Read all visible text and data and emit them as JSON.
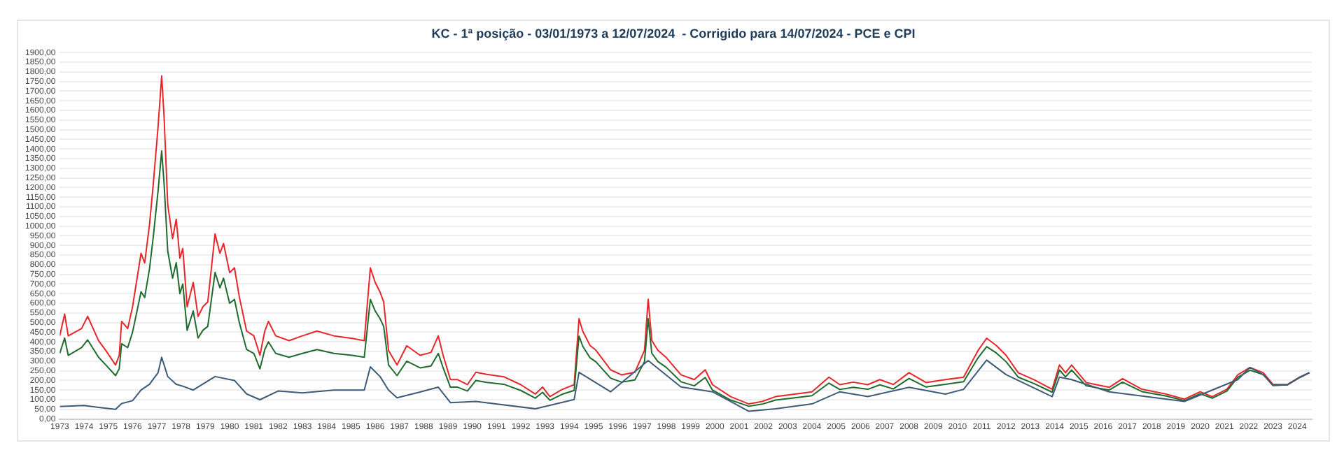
{
  "chart_data": {
    "type": "line",
    "title": "KC - 1ª posição - 03/01/1973 a 12/07/2024  - Corrigido para 14/07/2024 - PCE e CPI",
    "grid": "y",
    "legend": false,
    "marker": "none",
    "line_style": "solid",
    "xlim": [
      1973,
      2024.6
    ],
    "xticks": [
      1973,
      1974,
      1975,
      1976,
      1977,
      1978,
      1979,
      1980,
      1981,
      1982,
      1983,
      1984,
      1985,
      1986,
      1987,
      1988,
      1989,
      1990,
      1991,
      1992,
      1993,
      1994,
      1995,
      1996,
      1997,
      1998,
      1999,
      2000,
      2001,
      2002,
      2003,
      2004,
      2005,
      2006,
      2007,
      2008,
      2009,
      2010,
      2011,
      2012,
      2013,
      2014,
      2015,
      2016,
      2017,
      2018,
      2019,
      2020,
      2021,
      2022,
      2023,
      2024
    ],
    "ylim": [
      0,
      1900
    ],
    "yticks": [
      {
        "value": 0,
        "label": "0,00"
      },
      {
        "value": 50,
        "label": "50,00"
      },
      {
        "value": 100,
        "label": "100,00"
      },
      {
        "value": 150,
        "label": "150,00"
      },
      {
        "value": 200,
        "label": "200,00"
      },
      {
        "value": 250,
        "label": "250,00"
      },
      {
        "value": 300,
        "label": "300,00"
      },
      {
        "value": 350,
        "label": "350,00"
      },
      {
        "value": 400,
        "label": "400,00"
      },
      {
        "value": 450,
        "label": "450,00"
      },
      {
        "value": 500,
        "label": "500,00"
      },
      {
        "value": 550,
        "label": "550,00"
      },
      {
        "value": 600,
        "label": "600,00"
      },
      {
        "value": 650,
        "label": "650,00"
      },
      {
        "value": 700,
        "label": "700,00"
      },
      {
        "value": 750,
        "label": "750,00"
      },
      {
        "value": 800,
        "label": "800,00"
      },
      {
        "value": 850,
        "label": "850,00"
      },
      {
        "value": 900,
        "label": "900,00"
      },
      {
        "value": 950,
        "label": "950,00"
      },
      {
        "value": 1000,
        "label": "1000,00"
      },
      {
        "value": 1050,
        "label": "1050,00"
      },
      {
        "value": 1100,
        "label": "1100,00"
      },
      {
        "value": 1150,
        "label": "1150,00"
      },
      {
        "value": 1200,
        "label": "1200,00"
      },
      {
        "value": 1250,
        "label": "1250,00"
      },
      {
        "value": 1300,
        "label": "1300,00"
      },
      {
        "value": 1350,
        "label": "1350,00"
      },
      {
        "value": 1400,
        "label": "1400,00"
      },
      {
        "value": 1450,
        "label": "1450,00"
      },
      {
        "value": 1500,
        "label": "1500,00"
      },
      {
        "value": 1550,
        "label": "1550,00"
      },
      {
        "value": 1600,
        "label": "1600,00"
      },
      {
        "value": 1650,
        "label": "1650,00"
      },
      {
        "value": 1700,
        "label": "1700,00"
      },
      {
        "value": 1750,
        "label": "1750,00"
      },
      {
        "value": 1800,
        "label": "1800,00"
      },
      {
        "value": 1850,
        "label": "1850,00"
      },
      {
        "value": 1900,
        "label": "1900,00"
      }
    ],
    "series": [
      {
        "color": "#e8262a",
        "x": [
          1973.0,
          1973.2,
          1973.35,
          1973.9,
          1974.15,
          1974.6,
          1974.9,
          1975.3,
          1975.45,
          1975.55,
          1975.8,
          1976.0,
          1976.35,
          1976.5,
          1976.7,
          1976.85,
          1977.05,
          1977.2,
          1977.3,
          1977.45,
          1977.65,
          1977.8,
          1977.95,
          1978.07,
          1978.25,
          1978.5,
          1978.7,
          1978.9,
          1979.1,
          1979.4,
          1979.6,
          1979.75,
          1980.0,
          1980.2,
          1980.4,
          1980.7,
          1981.0,
          1981.25,
          1981.45,
          1981.6,
          1981.9,
          1982.45,
          1983.0,
          1983.6,
          1984.3,
          1985.05,
          1985.55,
          1985.8,
          1986.0,
          1986.2,
          1986.35,
          1986.55,
          1986.9,
          1987.3,
          1987.85,
          1988.3,
          1988.6,
          1988.8,
          1989.1,
          1989.4,
          1989.8,
          1990.15,
          1990.6,
          1991.3,
          1992.0,
          1992.6,
          1992.9,
          1993.2,
          1993.7,
          1994.2,
          1994.4,
          1994.55,
          1994.85,
          1995.1,
          1995.7,
          1996.15,
          1996.7,
          1997.1,
          1997.25,
          1997.4,
          1997.65,
          1998.0,
          1998.6,
          1999.15,
          1999.6,
          1999.9,
          2000.65,
          2001.4,
          2001.95,
          2002.5,
          2003.3,
          2004.0,
          2004.7,
          2005.15,
          2005.7,
          2006.3,
          2006.8,
          2007.35,
          2008.0,
          2008.7,
          2009.5,
          2010.25,
          2010.85,
          2011.2,
          2011.6,
          2012.0,
          2012.5,
          2013.15,
          2013.9,
          2014.2,
          2014.45,
          2014.7,
          2015.3,
          2016.25,
          2016.8,
          2017.6,
          2018.6,
          2019.35,
          2020.0,
          2020.5,
          2021.1,
          2021.55,
          2022.05,
          2022.6,
          2023.0,
          2023.6,
          2024.1,
          2024.5
        ],
        "values": [
          431,
          544,
          431,
          469,
          532,
          406,
          355,
          280,
          330,
          506,
          469,
          582,
          859,
          809,
          1010,
          1212,
          1514,
          1779,
          1565,
          1111,
          935,
          1036,
          834,
          884,
          582,
          708,
          532,
          582,
          607,
          960,
          859,
          910,
          759,
          784,
          633,
          456,
          431,
          330,
          456,
          506,
          431,
          406,
          431,
          456,
          431,
          418,
          406,
          784,
          708,
          658,
          607,
          355,
          280,
          380,
          330,
          345,
          431,
          330,
          204,
          204,
          178,
          242,
          231,
          219,
          178,
          129,
          166,
          116,
          153,
          178,
          520,
          456,
          382,
          356,
          255,
          229,
          242,
          356,
          621,
          407,
          356,
          318,
          229,
          204,
          255,
          178,
          116,
          78,
          91,
          116,
          129,
          141,
          217,
          178,
          191,
          178,
          204,
          179,
          240,
          189,
          204,
          217,
          356,
          419,
          381,
          330,
          240,
          204,
          154,
          280,
          240,
          280,
          189,
          164,
          209,
          154,
          129,
          103,
          141,
          116,
          154,
          229,
          267,
          240,
          179,
          179,
          217,
          240
        ]
      },
      {
        "color": "#1f6b2e",
        "x": [
          1973.0,
          1973.2,
          1973.35,
          1973.9,
          1974.15,
          1974.6,
          1974.9,
          1975.3,
          1975.45,
          1975.55,
          1975.8,
          1976.0,
          1976.35,
          1976.5,
          1976.7,
          1976.85,
          1977.05,
          1977.2,
          1977.3,
          1977.45,
          1977.65,
          1977.8,
          1977.95,
          1978.07,
          1978.25,
          1978.5,
          1978.7,
          1978.9,
          1979.1,
          1979.4,
          1979.6,
          1979.75,
          1980.0,
          1980.2,
          1980.4,
          1980.7,
          1981.0,
          1981.25,
          1981.45,
          1981.6,
          1981.9,
          1982.45,
          1983.0,
          1983.6,
          1984.3,
          1985.05,
          1985.55,
          1985.8,
          1986.0,
          1986.2,
          1986.35,
          1986.55,
          1986.9,
          1987.3,
          1987.85,
          1988.3,
          1988.6,
          1988.8,
          1989.1,
          1989.4,
          1989.8,
          1990.15,
          1990.6,
          1991.3,
          1992.0,
          1992.6,
          1992.9,
          1993.2,
          1993.7,
          1994.2,
          1994.4,
          1994.55,
          1994.85,
          1995.1,
          1995.7,
          1996.15,
          1996.7,
          1997.1,
          1997.25,
          1997.4,
          1997.65,
          1998.0,
          1998.6,
          1999.15,
          1999.6,
          1999.9,
          2000.65,
          2001.4,
          2001.95,
          2002.5,
          2003.3,
          2004.0,
          2004.7,
          2005.15,
          2005.7,
          2006.3,
          2006.8,
          2007.35,
          2008.0,
          2008.7,
          2009.5,
          2010.25,
          2010.85,
          2011.2,
          2011.6,
          2012.0,
          2012.5,
          2013.15,
          2013.9,
          2014.2,
          2014.45,
          2014.7,
          2015.3,
          2016.25,
          2016.8,
          2017.6,
          2018.6,
          2019.35,
          2020.0,
          2020.5,
          2021.1,
          2021.55,
          2022.05,
          2022.6,
          2023.0,
          2023.6,
          2024.1,
          2024.5
        ],
        "values": [
          340,
          420,
          330,
          370,
          410,
          320,
          280,
          225,
          260,
          390,
          370,
          450,
          660,
          630,
          780,
          940,
          1180,
          1390,
          1220,
          870,
          730,
          810,
          650,
          700,
          460,
          560,
          420,
          460,
          480,
          760,
          680,
          730,
          600,
          620,
          500,
          360,
          340,
          260,
          360,
          400,
          340,
          320,
          340,
          360,
          340,
          330,
          320,
          620,
          560,
          520,
          480,
          280,
          225,
          300,
          265,
          275,
          340,
          265,
          165,
          165,
          145,
          200,
          190,
          180,
          148,
          108,
          138,
          97,
          128,
          148,
          430,
          378,
          318,
          296,
          212,
          191,
          202,
          298,
          520,
          341,
          298,
          267,
          193,
          172,
          215,
          150,
          98,
          66,
          77,
          98,
          110,
          121,
          186,
          153,
          164,
          154,
          177,
          156,
          210,
          166,
          180,
          193,
          318,
          375,
          342,
          297,
          217,
          184,
          139,
          254,
          218,
          254,
          172,
          150,
          191,
          142,
          119,
          95,
          131,
          108,
          145,
          216,
          253,
          230,
          174,
          177,
          215,
          240
        ]
      },
      {
        "color": "#3d5a78",
        "x": [
          1973.0,
          1974.0,
          1974.6,
          1975.3,
          1975.55,
          1976.0,
          1976.35,
          1976.7,
          1977.05,
          1977.2,
          1977.45,
          1977.8,
          1978.07,
          1978.5,
          1979.4,
          1980.2,
          1980.7,
          1981.25,
          1982.0,
          1983.0,
          1984.3,
          1985.55,
          1985.8,
          1986.2,
          1986.55,
          1986.9,
          1987.85,
          1988.6,
          1989.1,
          1990.15,
          1992.6,
          1994.2,
          1994.4,
          1995.7,
          1997.25,
          1998.6,
          1999.9,
          2001.4,
          2002.5,
          2004.0,
          2005.15,
          2006.3,
          2008.0,
          2009.5,
          2010.25,
          2011.2,
          2012.0,
          2013.9,
          2014.2,
          2014.7,
          2016.25,
          2019.35,
          2021.55,
          2022.05,
          2022.6,
          2023.0,
          2023.6,
          2024.1,
          2024.5
        ],
        "values": [
          65,
          70,
          60,
          50,
          80,
          95,
          150,
          180,
          240,
          320,
          220,
          180,
          170,
          150,
          220,
          200,
          130,
          100,
          145,
          135,
          150,
          150,
          270,
          220,
          150,
          110,
          140,
          165,
          85,
          91,
          53,
          101,
          242,
          141,
          303,
          166,
          141,
          40,
          53,
          78,
          141,
          116,
          164,
          129,
          154,
          305,
          230,
          116,
          217,
          204,
          141,
          91,
          204,
          267,
          230,
          174,
          177,
          215,
          240
        ]
      }
    ]
  }
}
